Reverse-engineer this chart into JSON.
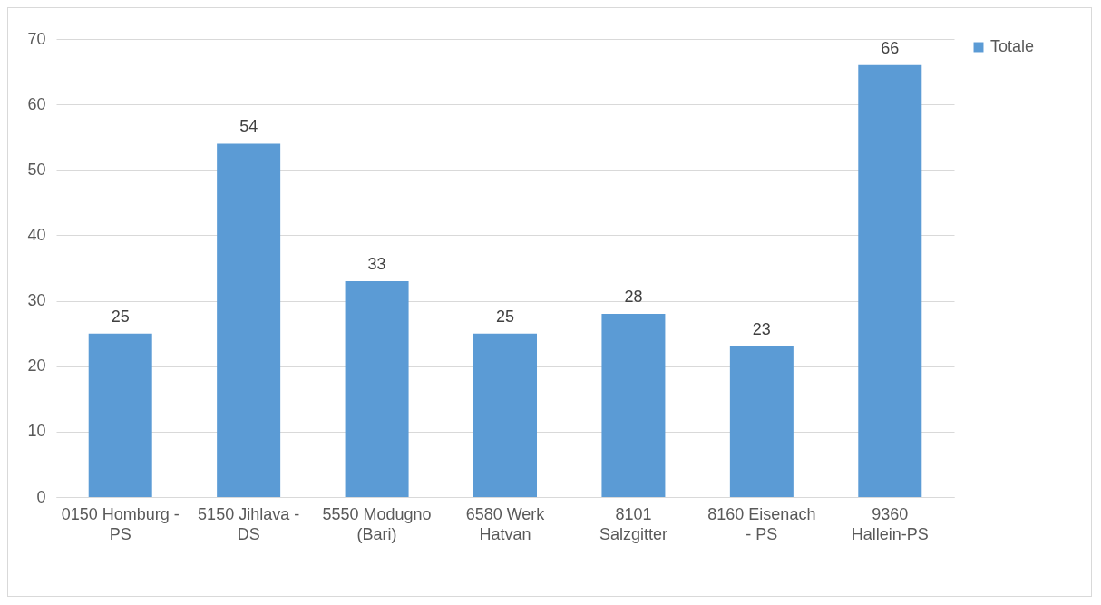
{
  "chart_data": {
    "type": "bar",
    "categories": [
      "0150 Homburg - PS",
      "5150 Jihlava - DS",
      "5550 Modugno (Bari)",
      "6580 Werk Hatvan",
      "8101 Salzgitter",
      "8160 Eisenach - PS",
      "9360 Hallein-PS"
    ],
    "series": [
      {
        "name": "Totale",
        "color": "#5b9bd5",
        "values": [
          25,
          54,
          33,
          25,
          28,
          23,
          66
        ]
      }
    ],
    "ylim": [
      0,
      70
    ],
    "yticks": [
      0,
      10,
      20,
      30,
      40,
      50,
      60,
      70
    ],
    "grid": "y",
    "legend": "right",
    "data_labels": true
  }
}
